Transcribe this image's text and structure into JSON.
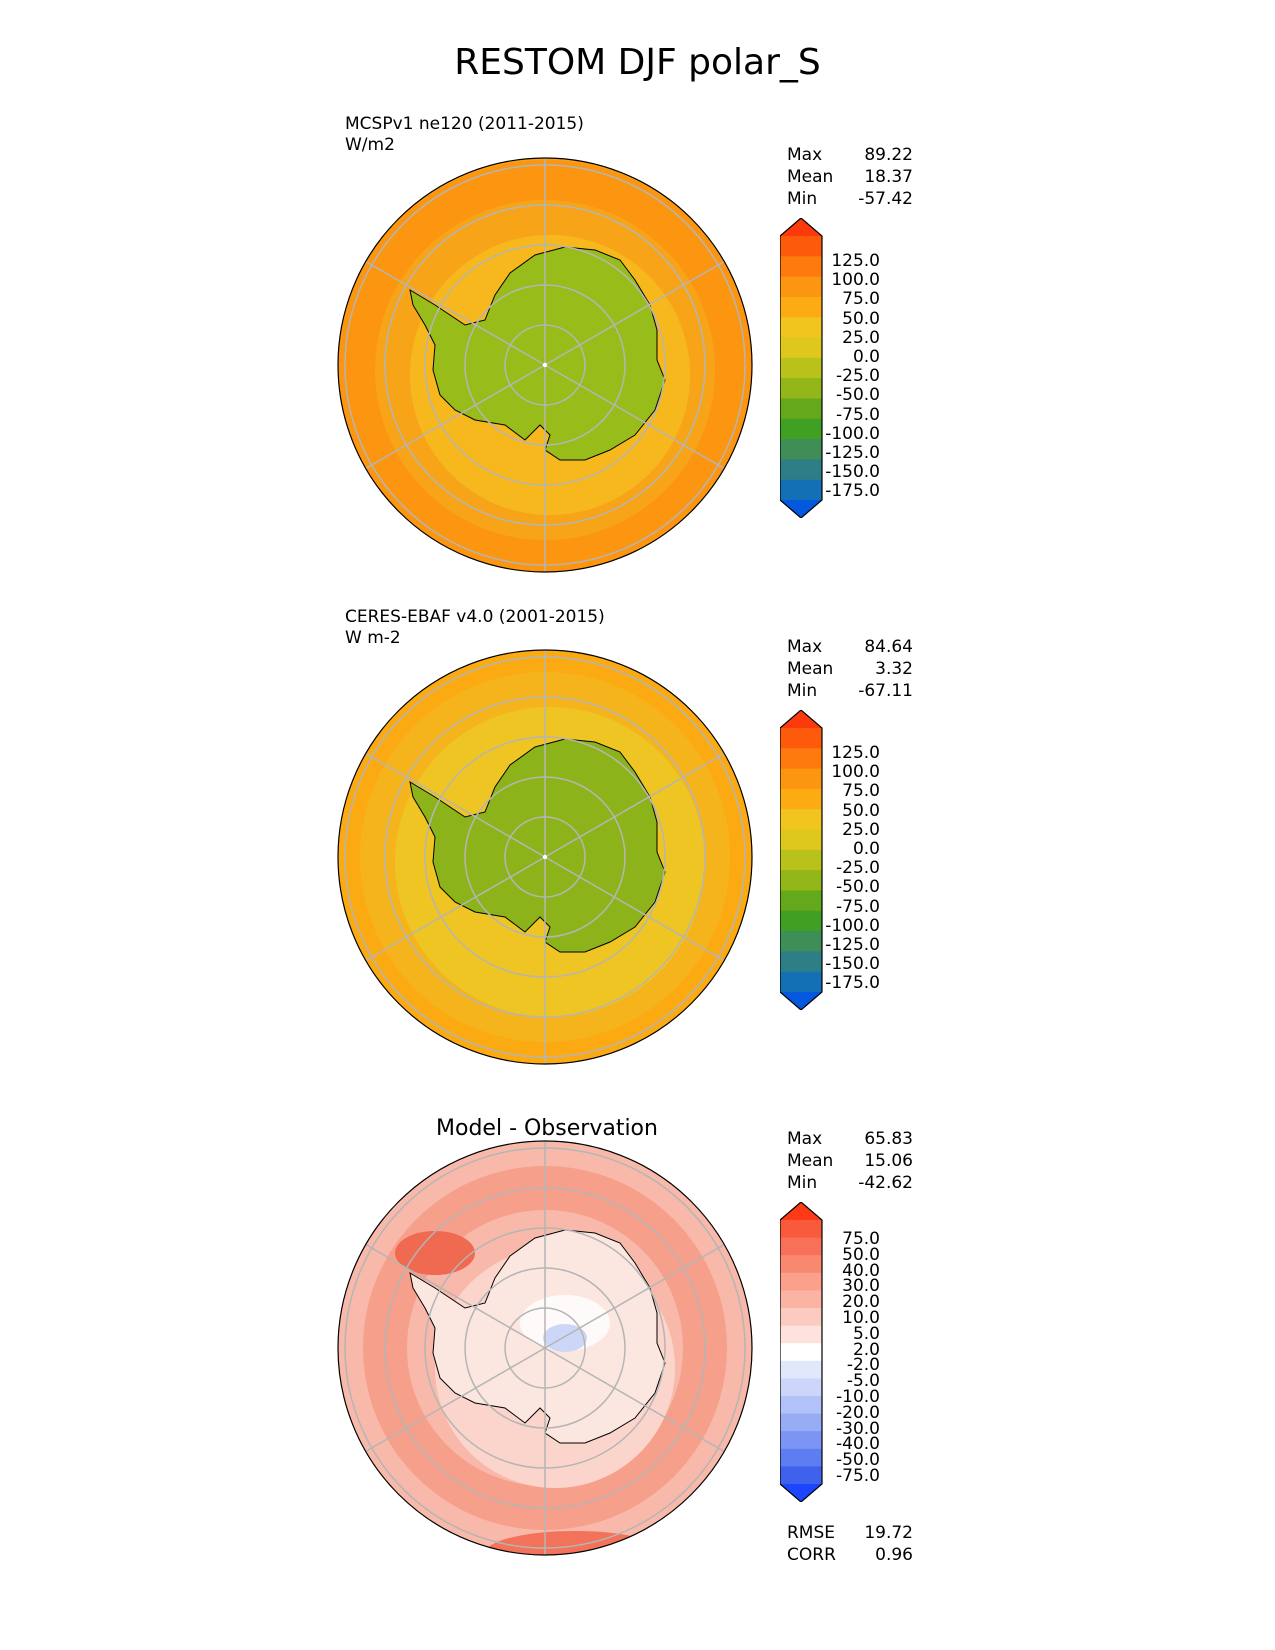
{
  "title": "RESTOM DJF polar_S",
  "panels": [
    {
      "id": "model",
      "label_line1": "MCSPv1 ne120 (2011-2015)",
      "label_line2": "W/m2",
      "stats": [
        {
          "label": "Max",
          "value": "89.22"
        },
        {
          "label": "Mean",
          "value": "18.37"
        },
        {
          "label": "Min",
          "value": "-57.42"
        }
      ],
      "colorbar_ticks": [
        "125.0",
        "100.0",
        "75.0",
        "50.0",
        "25.0",
        "0.0",
        "-25.0",
        "-50.0",
        "-75.0",
        "-100.0",
        "-125.0",
        "-150.0",
        "-175.0"
      ],
      "colorbar_colors": [
        "#fd3a0c",
        "#fd5a0c",
        "#fe7a0e",
        "#fc950f",
        "#fcac12",
        "#f1c41e",
        "#dfc81d",
        "#b8c21b",
        "#93b618",
        "#64a81b",
        "#3fa024",
        "#3f8e58",
        "#2d7e86",
        "#1470b5",
        "#0458dd"
      ],
      "ocean_color": "#f8a419",
      "land_color": "#98bc1a"
    },
    {
      "id": "obs",
      "label_line1": "CERES-EBAF v4.0 (2001-2015)",
      "label_line2": "W m-2",
      "stats": [
        {
          "label": "Max",
          "value": "84.64"
        },
        {
          "label": "Mean",
          "value": "3.32"
        },
        {
          "label": "Min",
          "value": "-67.11"
        }
      ],
      "colorbar_ticks": [
        "125.0",
        "100.0",
        "75.0",
        "50.0",
        "25.0",
        "0.0",
        "-25.0",
        "-50.0",
        "-75.0",
        "-100.0",
        "-125.0",
        "-150.0",
        "-175.0"
      ],
      "colorbar_colors": [
        "#fd3a0c",
        "#fd5a0c",
        "#fe7a0e",
        "#fc950f",
        "#fcac12",
        "#f1c41e",
        "#dfc81d",
        "#b8c21b",
        "#93b618",
        "#64a81b",
        "#3fa024",
        "#3f8e58",
        "#2d7e86",
        "#1470b5",
        "#0458dd"
      ],
      "ocean_color": "#f6b41c",
      "land_color": "#8cb41a"
    },
    {
      "id": "diff",
      "center_title": "Model - Observation",
      "stats": [
        {
          "label": "Max",
          "value": "65.83"
        },
        {
          "label": "Mean",
          "value": "15.06"
        },
        {
          "label": "Min",
          "value": "-42.62"
        }
      ],
      "colorbar_ticks": [
        "75.0",
        "50.0",
        "40.0",
        "30.0",
        "20.0",
        "10.0",
        "5.0",
        "2.0",
        "-2.0",
        "-5.0",
        "-10.0",
        "-20.0",
        "-30.0",
        "-40.0",
        "-50.0",
        "-75.0"
      ],
      "colorbar_colors": [
        "#fc3a18",
        "#f95a3c",
        "#f97058",
        "#f98870",
        "#fba08a",
        "#fbb4a4",
        "#fccbc0",
        "#fde3dc",
        "#ffffff",
        "#e2e8fb",
        "#ccd6fa",
        "#b2c2f8",
        "#98acf5",
        "#7c94f3",
        "#5e7df0",
        "#3e62ec",
        "#1c45ff"
      ],
      "ocean_color": "#f8b9aa",
      "land_color": "#fbe6e0",
      "metrics": [
        {
          "label": "RMSE",
          "value": "19.72"
        },
        {
          "label": "CORR",
          "value": "0.96"
        }
      ]
    }
  ],
  "chart_data": {
    "type": "heatmap",
    "projection": "south polar stereographic",
    "title": "RESTOM DJF polar_S",
    "panels": [
      {
        "name": "MCSPv1 ne120 (2011-2015)",
        "units": "W/m2",
        "max": 89.22,
        "mean": 18.37,
        "min": -57.42,
        "levels": [
          -175,
          -150,
          -125,
          -100,
          -75,
          -50,
          -25,
          0,
          25,
          50,
          75,
          100,
          125
        ]
      },
      {
        "name": "CERES-EBAF v4.0 (2001-2015)",
        "units": "W m-2",
        "max": 84.64,
        "mean": 3.32,
        "min": -67.11,
        "levels": [
          -175,
          -150,
          -125,
          -100,
          -75,
          -50,
          -25,
          0,
          25,
          50,
          75,
          100,
          125
        ]
      },
      {
        "name": "Model - Observation",
        "max": 65.83,
        "mean": 15.06,
        "min": -42.62,
        "rmse": 19.72,
        "corr": 0.96,
        "levels": [
          -75,
          -50,
          -40,
          -30,
          -20,
          -10,
          -5,
          -2,
          2,
          5,
          10,
          20,
          30,
          40,
          50,
          75
        ]
      }
    ]
  }
}
